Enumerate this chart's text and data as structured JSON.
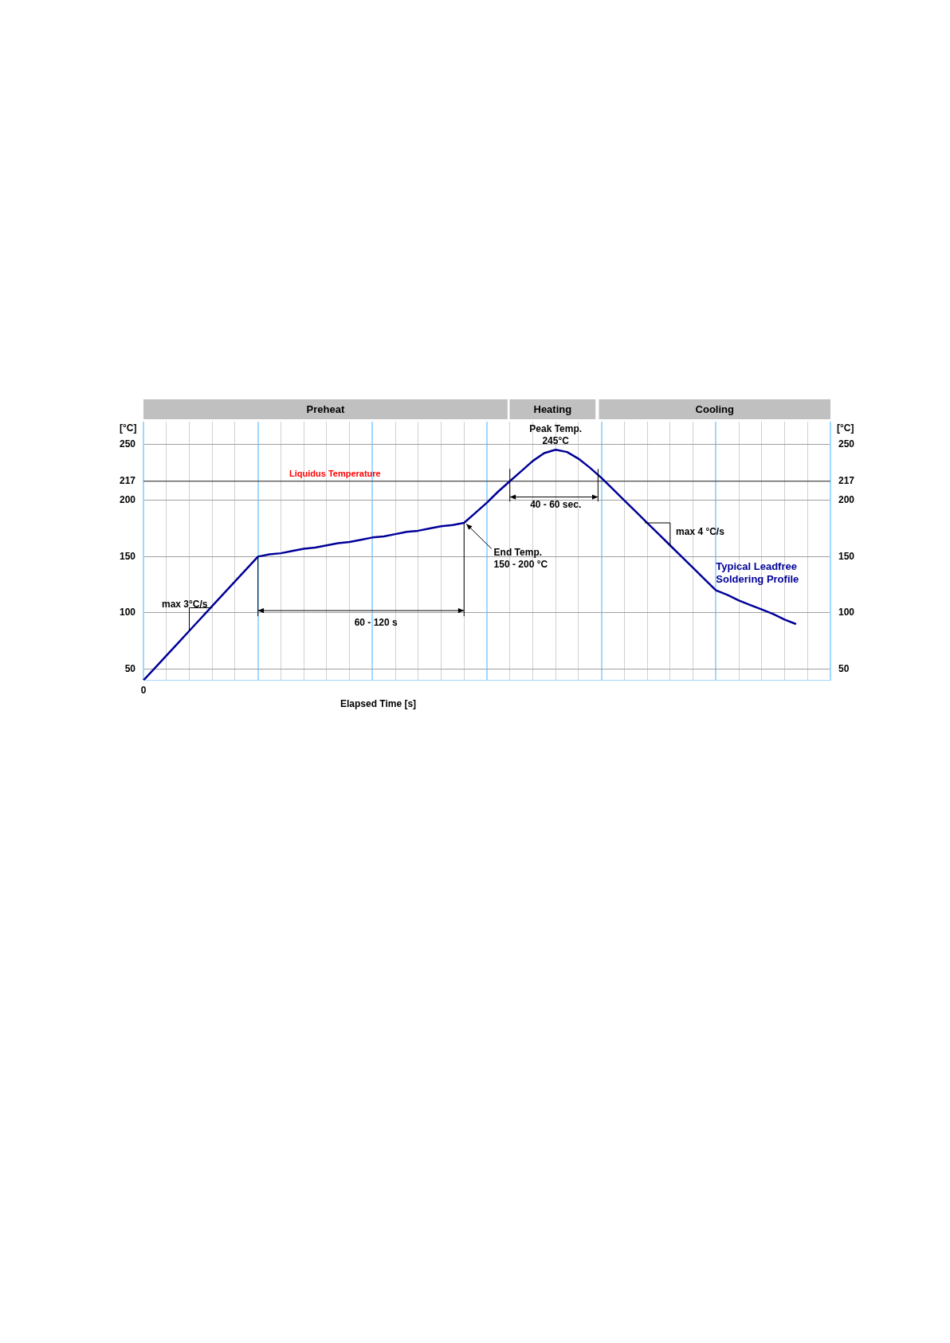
{
  "chart_data": {
    "type": "line",
    "xlabel": "Elapsed Time [s]",
    "ylabel": "[°C]",
    "y2label": "[°C]",
    "categories": [
      "0",
      null,
      null,
      null,
      null,
      null,
      null,
      null,
      null,
      null,
      null,
      null,
      null,
      null,
      null,
      null,
      null,
      null,
      null,
      null,
      null,
      null,
      null,
      null,
      null,
      null,
      null,
      null,
      null,
      null,
      null,
      null,
      null,
      null,
      null,
      null,
      null,
      null,
      null,
      null,
      null,
      null,
      null,
      null,
      null,
      null,
      null,
      null,
      null,
      null,
      null,
      null,
      null,
      null,
      null,
      null,
      null,
      null,
      null,
      null,
      null
    ],
    "series": [
      {
        "name": "Typical Leadfree Soldering Profile",
        "color": "#000099",
        "values": [
          40,
          51,
          62,
          73,
          84,
          95,
          106,
          117,
          128,
          139,
          150,
          152,
          153,
          155,
          157,
          158,
          160,
          162,
          163,
          165,
          167,
          168,
          170,
          172,
          173,
          175,
          177,
          178,
          180,
          189,
          198,
          208,
          217,
          226,
          235,
          242,
          245,
          243,
          237,
          229,
          220,
          210,
          200,
          190,
          180,
          170,
          160,
          150,
          140,
          130,
          120,
          116,
          111,
          107,
          103,
          99,
          94,
          90,
          null,
          null,
          null
        ]
      }
    ],
    "ylim": [
      40,
      270
    ],
    "yticks": [
      50,
      100,
      150,
      200,
      217,
      250
    ],
    "y2lim": [
      40,
      270
    ],
    "y2ticks": [
      50,
      100,
      150,
      200,
      217,
      250
    ],
    "ref_lines": [
      {
        "axis": "y",
        "value": 217,
        "label": "Liquidus Temperature"
      }
    ],
    "annotations": [
      "Preheat",
      "Heating",
      "Cooling",
      "Peak Temp.\n245°C",
      "End Temp.\n150 - 200 °C",
      "40 - 60 sec.",
      "60 - 120 s",
      "max 3°C/s",
      "max 4 °C/s"
    ],
    "grid": true,
    "marker": "none"
  }
}
